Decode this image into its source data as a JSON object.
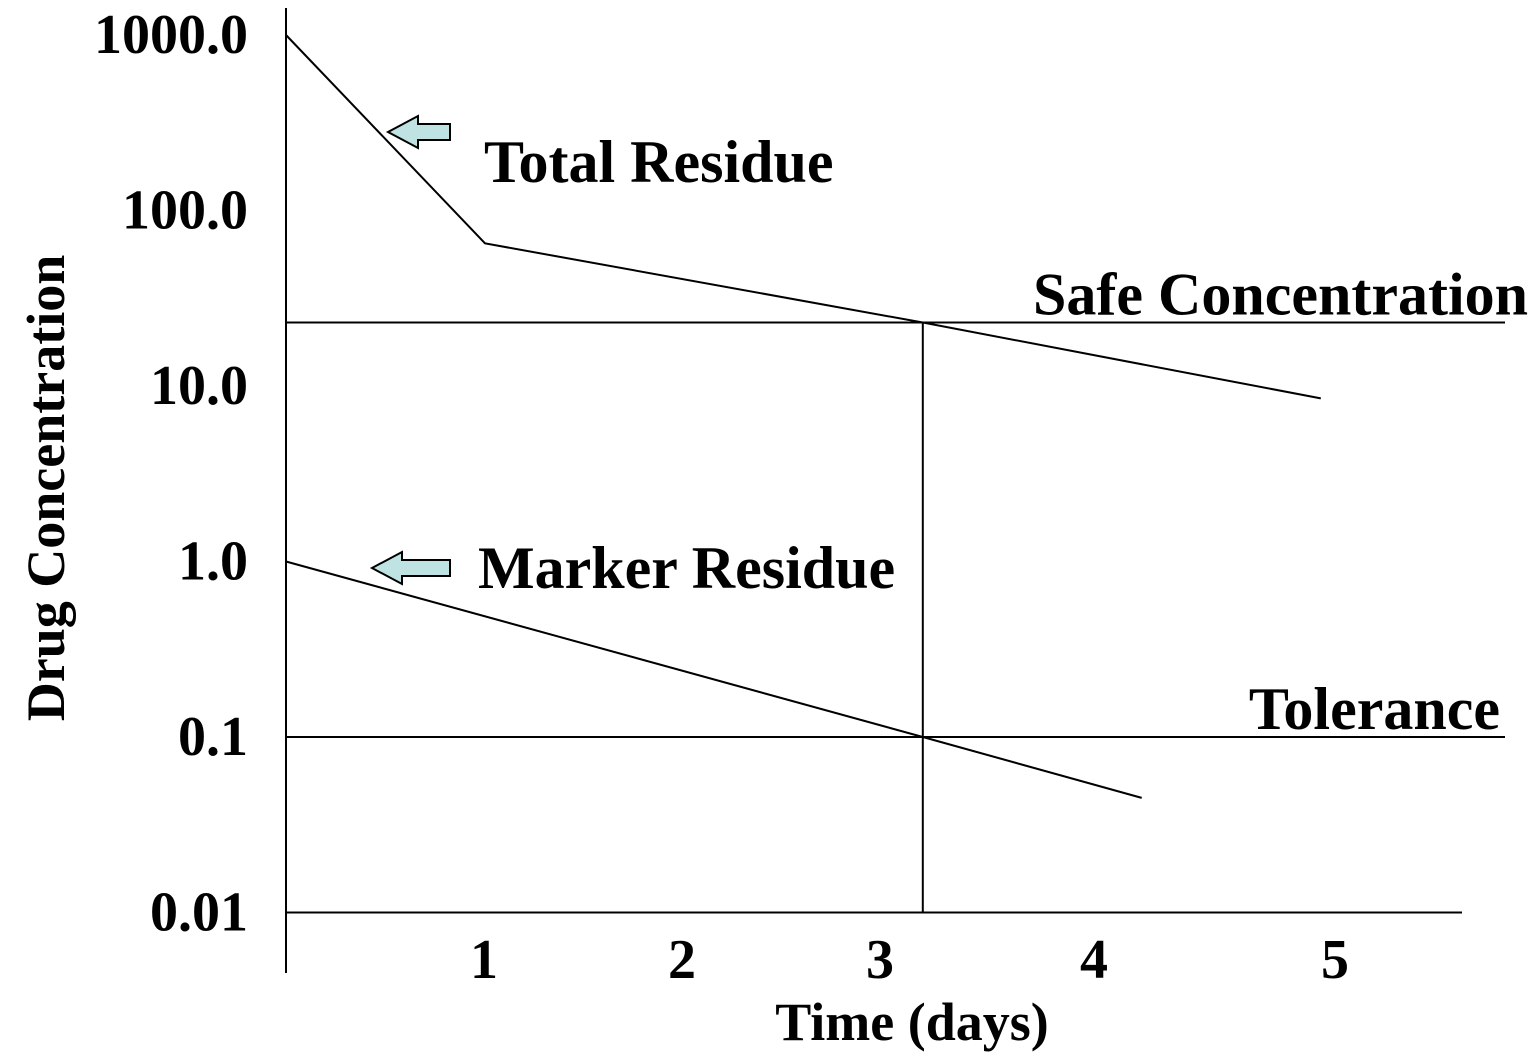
{
  "chart_data": {
    "type": "line",
    "ylabel": "Drug Concentration",
    "xlabel": "Time (days)",
    "y_scale": "log",
    "ylim": [
      0.01,
      1000
    ],
    "y_ticks": [
      "1000.0",
      "100.0",
      "10.0",
      "1.0",
      "0.1",
      "0.01"
    ],
    "x_ticks": [
      "1",
      "2",
      "3",
      "4",
      "5"
    ],
    "grid": false,
    "series": [
      {
        "name": "Total Residue",
        "x": [
          0,
          1,
          3.2,
          5.2
        ],
        "y": [
          1000,
          65,
          23,
          8.5
        ]
      },
      {
        "name": "Marker Residue",
        "x": [
          0,
          3.2,
          4.3
        ],
        "y": [
          1.0,
          0.1,
          0.045
        ]
      }
    ],
    "reference_lines": [
      {
        "label": "Safe Concentration",
        "y": 23
      },
      {
        "label": "Tolerance",
        "y": 0.1
      }
    ],
    "withdrawal_day": 3.2
  }
}
